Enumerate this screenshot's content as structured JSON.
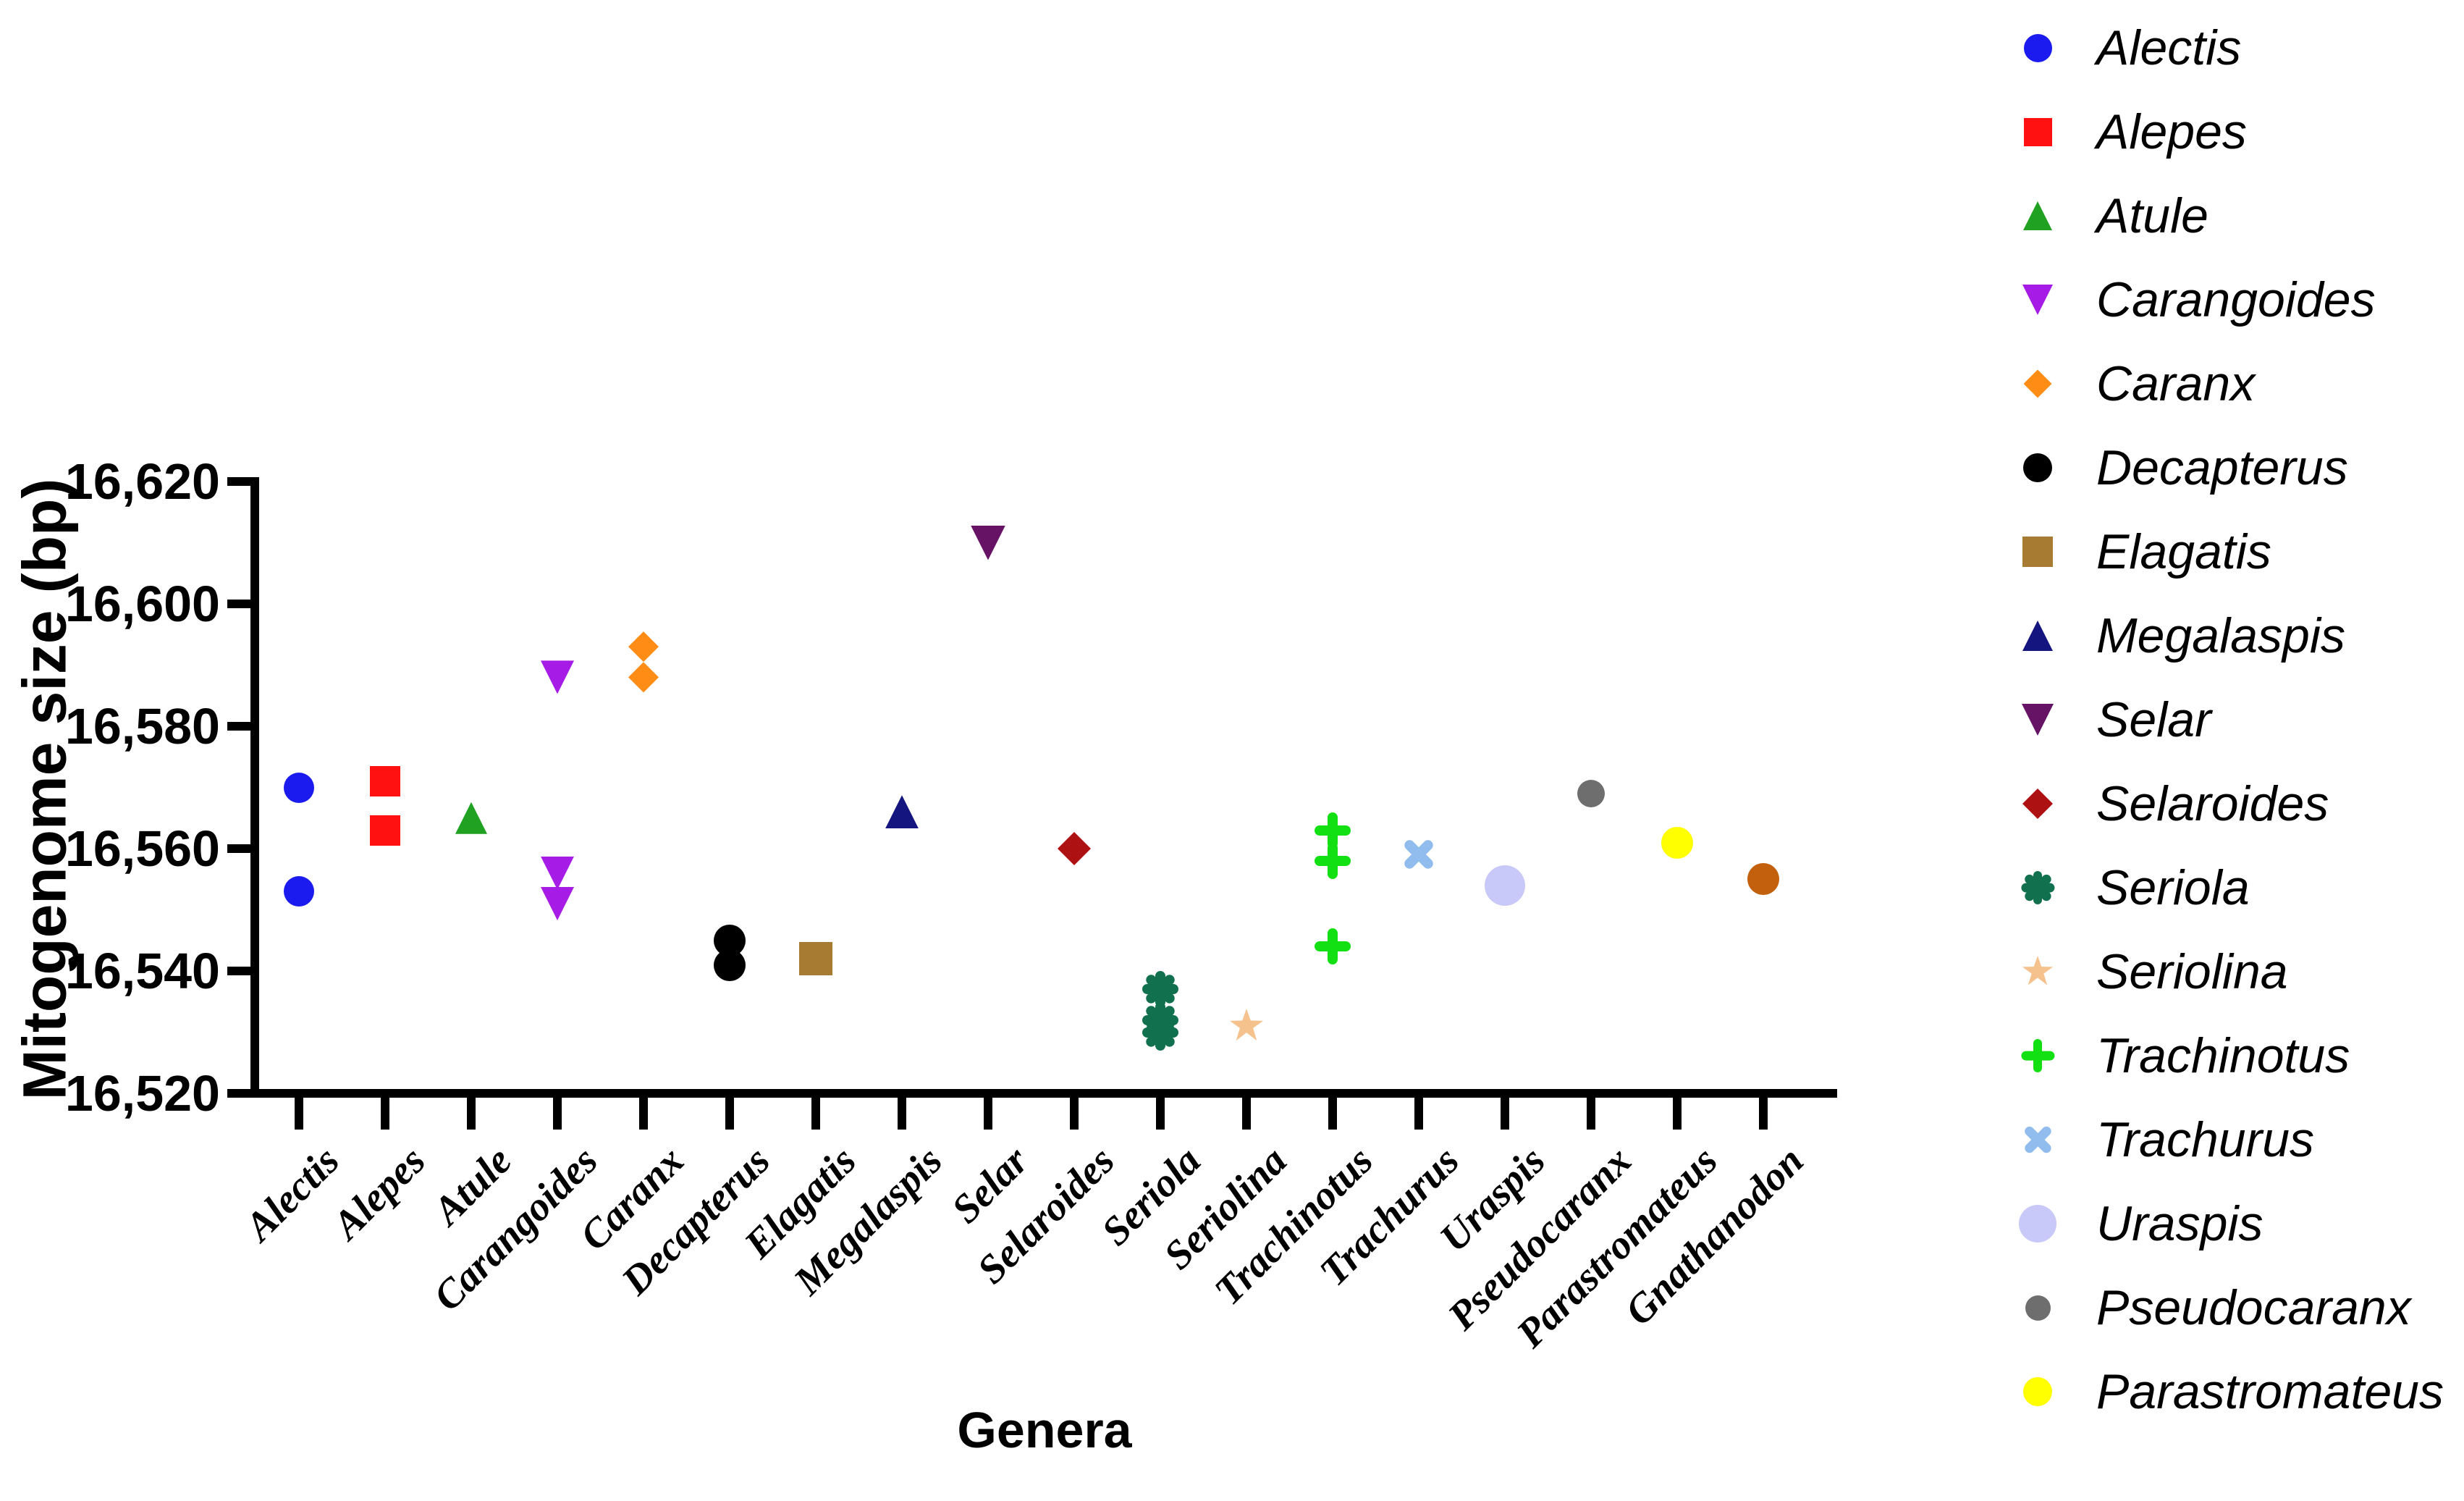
{
  "figure": {
    "x_title": "Genera",
    "y_title": "Mitogenome size (bp)",
    "background_color": "#FFFFFF",
    "axis_color": "#000000"
  },
  "chart_data": {
    "type": "scatter",
    "title": "",
    "xlabel": "Genera",
    "ylabel": "Mitogenome size (bp)",
    "ylim": [
      16520,
      16620
    ],
    "ytick_step": 20,
    "ytick_labels": [
      "16,520",
      "16,540",
      "16,560",
      "16,580",
      "16,600",
      "16,620"
    ],
    "grid": false,
    "legend_position": "right",
    "categories": [
      "Alectis",
      "Alepes",
      "Atule",
      "Carangoides",
      "Caranx",
      "Decapterus",
      "Elagatis",
      "Megalaspis",
      "Selar",
      "Selaroides",
      "Seriola",
      "Seriolina",
      "Trachinotus",
      "Trachurus",
      "Uraspis",
      "Pseudocaranx",
      "Parastromateus",
      "Gnathanodon"
    ],
    "series": [
      {
        "name": "Alectis",
        "marker": "circle",
        "color": "#1B1BF0",
        "size": 42,
        "in_legend": true,
        "values": [
          16570,
          16553
        ]
      },
      {
        "name": "Alepes",
        "marker": "square",
        "color": "#FF1111",
        "size": 42,
        "in_legend": true,
        "values": [
          16571,
          16563
        ]
      },
      {
        "name": "Atule",
        "marker": "triangle-up",
        "color": "#21A121",
        "size": 44,
        "in_legend": true,
        "values": [
          16565
        ]
      },
      {
        "name": "Carangoides",
        "marker": "triangle-down",
        "color": "#A61BE6",
        "size": 46,
        "in_legend": true,
        "values": [
          16588,
          16556,
          16551
        ]
      },
      {
        "name": "Caranx",
        "marker": "diamond",
        "color": "#FF8C15",
        "size": 42,
        "in_legend": true,
        "values": [
          16593,
          16588
        ]
      },
      {
        "name": "Decapterus",
        "marker": "circle",
        "color": "#000000",
        "size": 44,
        "in_legend": true,
        "values": [
          16545,
          16541
        ]
      },
      {
        "name": "Elagatis",
        "marker": "square",
        "color": "#A87B32",
        "size": 46,
        "in_legend": true,
        "values": [
          16542
        ]
      },
      {
        "name": "Megalaspis",
        "marker": "triangle-up",
        "color": "#151580",
        "size": 46,
        "in_legend": true,
        "values": [
          16566
        ]
      },
      {
        "name": "Selar",
        "marker": "triangle-down",
        "color": "#661366",
        "size": 48,
        "in_legend": true,
        "values": [
          16610
        ]
      },
      {
        "name": "Selaroides",
        "marker": "diamond",
        "color": "#AE1111",
        "size": 46,
        "in_legend": true,
        "values": [
          16560
        ]
      },
      {
        "name": "Seriola",
        "marker": "asterisk",
        "color": "#11714F",
        "size": 50,
        "in_legend": true,
        "values": [
          16537,
          16532,
          16530
        ]
      },
      {
        "name": "Seriolina",
        "marker": "star",
        "color": "#F5C28E",
        "size": 48,
        "in_legend": true,
        "values": [
          16531
        ]
      },
      {
        "name": "Trachinotus",
        "marker": "plus",
        "color": "#12E012",
        "size": 50,
        "in_legend": true,
        "values": [
          16563,
          16558,
          16544
        ]
      },
      {
        "name": "Trachurus",
        "marker": "x",
        "color": "#90BCEE",
        "size": 50,
        "in_legend": true,
        "values": [
          16559
        ]
      },
      {
        "name": "Uraspis",
        "marker": "circle",
        "color": "#C9C9F9",
        "size": 56,
        "in_legend": true,
        "values": [
          16554
        ]
      },
      {
        "name": "Pseudocaranx",
        "marker": "circle",
        "color": "#6E6E6E",
        "size": 38,
        "in_legend": true,
        "values": [
          16569
        ]
      },
      {
        "name": "Parastromateus",
        "marker": "circle",
        "color": "#FFFF00",
        "size": 44,
        "in_legend": true,
        "values": [
          16561
        ]
      },
      {
        "name": "Gnathanodon",
        "marker": "circle",
        "color": "#C2600E",
        "size": 44,
        "in_legend": false,
        "values": [
          16555
        ]
      }
    ]
  }
}
